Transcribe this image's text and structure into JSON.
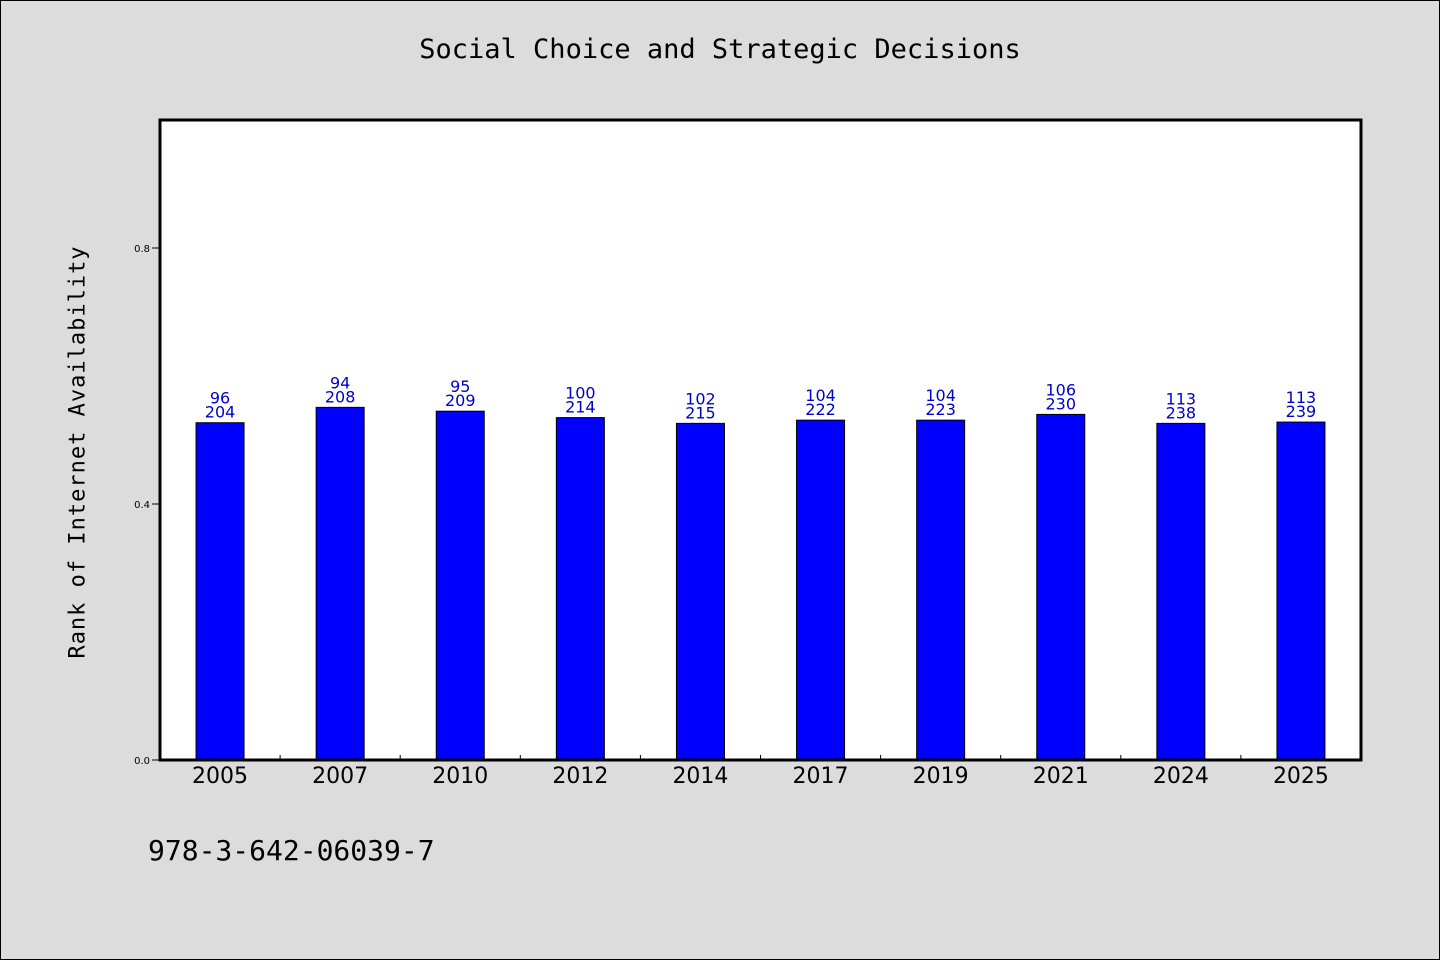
{
  "title": "Social Choice and Strategic Decisions",
  "footer_text": "978-3-642-06039-7",
  "colors": {
    "background": "#dcdcdc",
    "plot_bg": "#ffffff",
    "bar": "#0000ff",
    "label": "#0000cc"
  },
  "chart_data": {
    "type": "bar",
    "title": "Social Choice and Strategic Decisions",
    "xlabel": "",
    "ylabel": "Rank of Internet Availability",
    "categories": [
      "2005",
      "2007",
      "2010",
      "2012",
      "2014",
      "2017",
      "2019",
      "2021",
      "2024",
      "2025"
    ],
    "values": [
      0.527,
      0.551,
      0.545,
      0.535,
      0.526,
      0.531,
      0.531,
      0.54,
      0.526,
      0.528
    ],
    "labels_top": [
      "96",
      "94",
      "95",
      "100",
      "102",
      "104",
      "104",
      "106",
      "113",
      "113"
    ],
    "labels_bottom": [
      "204",
      "208",
      "209",
      "214",
      "215",
      "222",
      "223",
      "230",
      "238",
      "239"
    ],
    "yticks": [
      "0.0",
      "0.4",
      "0.8"
    ],
    "ylim": [
      0,
      1.0
    ],
    "grid": false,
    "legend": "none"
  }
}
